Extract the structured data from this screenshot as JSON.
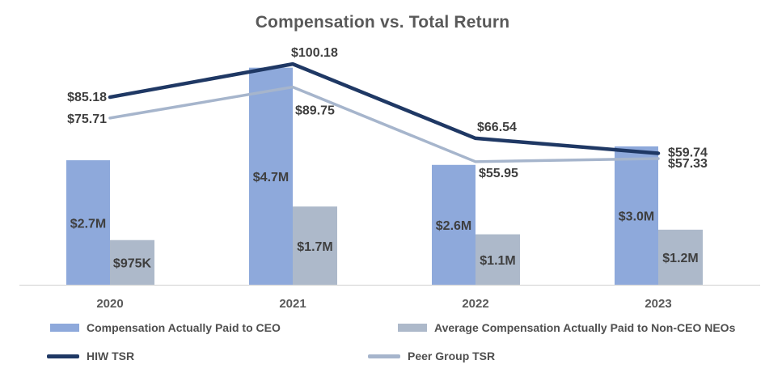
{
  "title": "Compensation vs. Total Return",
  "colors": {
    "ceo_bar": "#8EA9DB",
    "neo_bar": "#ADB9CA",
    "hiw_line": "#1F3864",
    "peer_line": "#A6B5CC",
    "axis_line": "#D9D9D9",
    "data_label_text": "#3F3F3F",
    "tick_text": "#595959",
    "title_text": "#595959"
  },
  "chart_data": {
    "type": "bar",
    "subtype": "combo bar + line, dual hidden value axes, no gridlines",
    "title": "Compensation vs. Total Return",
    "categories": [
      "2020",
      "2021",
      "2022",
      "2023"
    ],
    "series": [
      {
        "name": "Compensation Actually Paid to CEO",
        "type": "bar",
        "axis": "compensation (USD millions)",
        "values": [
          2.7,
          4.7,
          2.6,
          3.0
        ],
        "labels": [
          "$2.7M",
          "$4.7M",
          "$2.6M",
          "$3.0M"
        ],
        "label_position": "center of bar"
      },
      {
        "name": "Average Compensation Actually Paid to Non-CEO NEOs",
        "type": "bar",
        "axis": "compensation (USD millions)",
        "values": [
          0.975,
          1.7,
          1.1,
          1.2
        ],
        "labels": [
          "$975K",
          "$1.7M",
          "$1.1M",
          "$1.2M"
        ],
        "label_position": "center of bar"
      },
      {
        "name": "HIW TSR",
        "type": "line",
        "axis": "total shareholder return (USD)",
        "values": [
          85.18,
          100.18,
          66.54,
          59.74
        ],
        "labels": [
          "$85.18",
          "$100.18",
          "$66.54",
          "$59.74"
        ]
      },
      {
        "name": "Peer Group TSR",
        "type": "line",
        "axis": "total shareholder return (USD)",
        "values": [
          75.71,
          89.75,
          55.95,
          57.33
        ],
        "labels": [
          "$75.71",
          "$89.75",
          "$55.95",
          "$57.33"
        ]
      }
    ],
    "xlabel": "",
    "ylabel": "",
    "grid": "off",
    "legend_position": "bottom"
  }
}
